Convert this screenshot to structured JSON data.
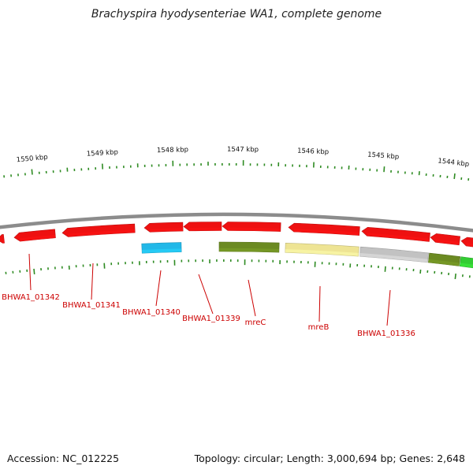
{
  "title": "Brachyspira hyodysenteriae WA1, complete genome",
  "accession": "Accession: NC_012225",
  "summary": "Topology: circular; Length: 3,000,694 bp; Genes: 2,648",
  "colors": {
    "backbone": "#8c8c8c",
    "tick": "#2e8b22",
    "label": "#cc0000",
    "ruler_text": "#111111"
  },
  "ruler": [
    {
      "label": "1550 kbp"
    },
    {
      "label": "1549 kbp"
    },
    {
      "label": "1548 kbp"
    },
    {
      "label": "1547 kbp"
    },
    {
      "label": "1546 kbp"
    },
    {
      "label": "1545 kbp"
    },
    {
      "label": "1544 kbp"
    }
  ],
  "features": [
    {
      "name": "",
      "strand": "+",
      "color": "#ee1111",
      "direction": "left"
    },
    {
      "name": "",
      "strand": "+",
      "color": "#ee1111",
      "direction": "left"
    },
    {
      "name": "",
      "strand": "+",
      "color": "#ee1111",
      "direction": "left"
    },
    {
      "name": "",
      "strand": "+",
      "color": "#ee1111",
      "direction": "left"
    },
    {
      "name": "",
      "strand": "+",
      "color": "#ee1111",
      "direction": "left"
    },
    {
      "name": "",
      "strand": "+",
      "color": "#ee1111",
      "direction": "left"
    },
    {
      "name": "",
      "strand": "+",
      "color": "#ee1111",
      "direction": "left"
    },
    {
      "name": "",
      "strand": "+",
      "color": "#ee1111",
      "direction": "left"
    },
    {
      "name": "",
      "strand": "+",
      "color": "#ee1111",
      "direction": "left"
    },
    {
      "name": "",
      "strand": "+",
      "color": "#ee1111",
      "direction": "left"
    },
    {
      "name": "",
      "strand": "-",
      "color": "#22b8e8",
      "direction": "none"
    },
    {
      "name": "",
      "strand": "-",
      "color": "#6b8a22",
      "direction": "none"
    },
    {
      "name": "",
      "strand": "-",
      "color": "#eee494",
      "direction": "none"
    },
    {
      "name": "",
      "strand": "-",
      "color": "#c2c2c2",
      "direction": "none"
    },
    {
      "name": "",
      "strand": "-",
      "color": "#6b8a22",
      "direction": "none"
    },
    {
      "name": "",
      "strand": "-",
      "color": "#33cc33",
      "direction": "none"
    }
  ],
  "gene_labels": [
    {
      "text": "BHWA1_01342"
    },
    {
      "text": "BHWA1_01341"
    },
    {
      "text": "BHWA1_01340"
    },
    {
      "text": "BHWA1_01339"
    },
    {
      "text": "mreC"
    },
    {
      "text": "mreB"
    },
    {
      "text": "BHWA1_01336"
    }
  ]
}
